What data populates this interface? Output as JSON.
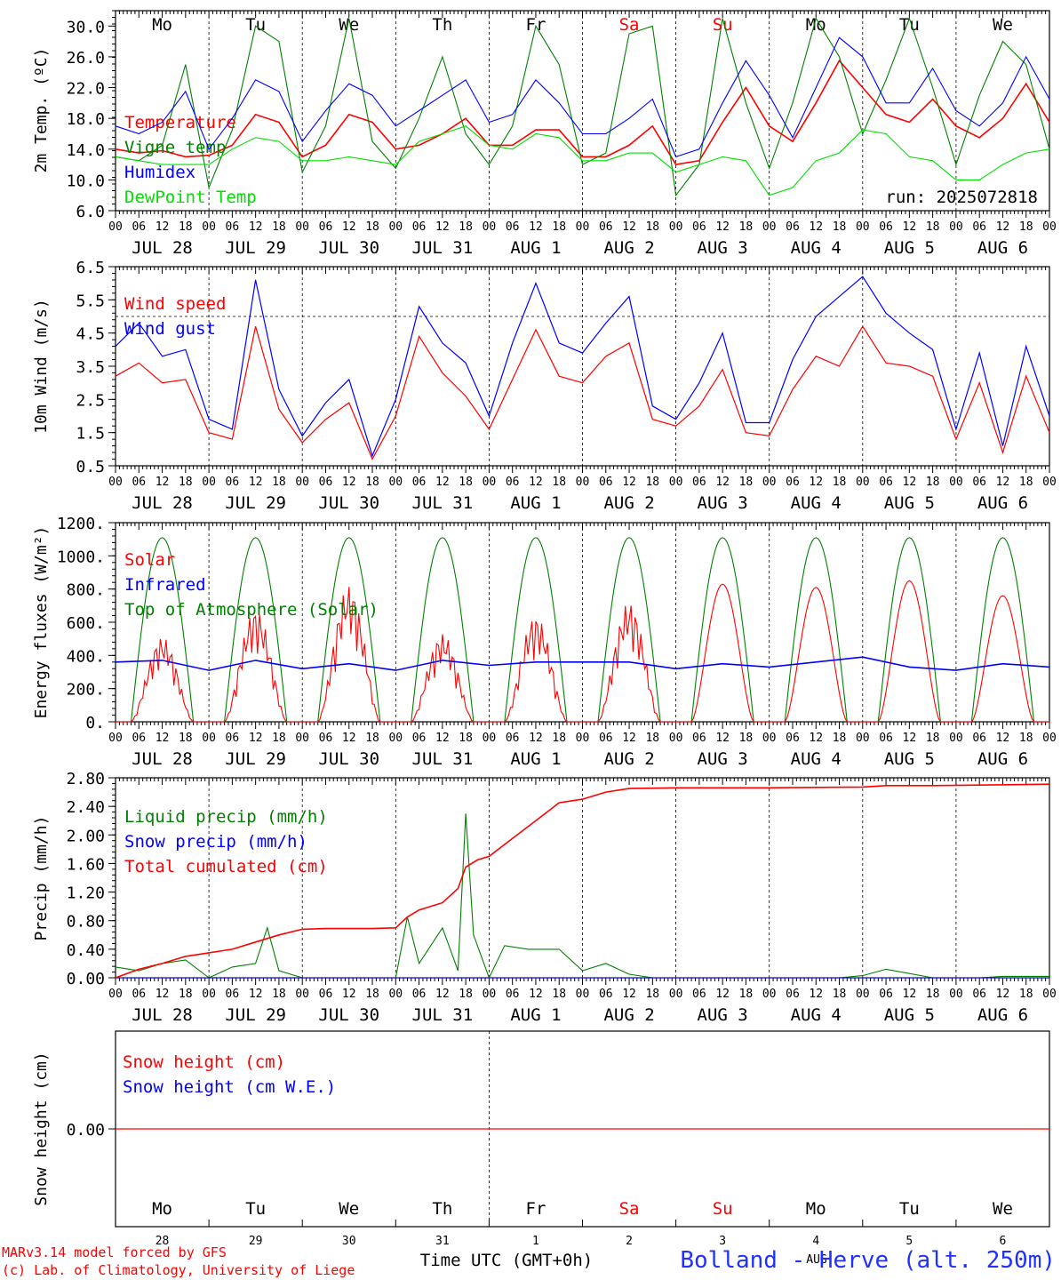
{
  "colors": {
    "red": "#ff0000",
    "green": "#008000",
    "blue": "#0000ff",
    "lime": "#00e000",
    "black": "#000000"
  },
  "days": [
    "28",
    "29",
    "30",
    "31",
    "1",
    "2",
    "3",
    "4",
    "5",
    "6"
  ],
  "date_labels": [
    "JUL 28",
    "JUL 29",
    "JUL 30",
    "JUL 31",
    "AUG  1",
    "AUG  2",
    "AUG  3",
    "AUG  4",
    "AUG  5",
    "AUG  6"
  ],
  "weekdays": [
    "Mo",
    "Tu",
    "We",
    "Th",
    "Fr",
    "Sa",
    "Su",
    "Mo",
    "Tu",
    "We"
  ],
  "weekday_colors": [
    "#000000",
    "#000000",
    "#000000",
    "#000000",
    "#000000",
    "#ff0000",
    "#ff0000",
    "#000000",
    "#000000",
    "#000000"
  ],
  "hour_ticks": [
    "00",
    "06",
    "12",
    "18"
  ],
  "footer": {
    "model": "MARv3.14 model forced by GFS",
    "lab": "(c) Lab. of Climatology, University of Liege",
    "xlabel": "Time UTC (GMT+0h)",
    "month": "AUG",
    "station": "Bolland - Herve (alt. 250m)"
  },
  "chart_data": [
    {
      "type": "line",
      "panel": "temperature",
      "ylabel": "2m Temp. (ºC)",
      "ylim": [
        6,
        32
      ],
      "yticks": [
        "6.0",
        "10.0",
        "14.0",
        "18.0",
        "22.0",
        "26.0",
        "30.0"
      ],
      "annotation": "run: 2025072818",
      "x_unit": "hours from JUL 28 00 UTC",
      "x_range": [
        0,
        240
      ],
      "series": [
        {
          "name": "Temperature",
          "color": "#ff0000",
          "x": [
            0,
            6,
            12,
            18,
            24,
            30,
            36,
            42,
            48,
            54,
            60,
            66,
            72,
            78,
            84,
            90,
            96,
            102,
            108,
            114,
            120,
            126,
            132,
            138,
            144,
            150,
            156,
            162,
            168,
            174,
            180,
            186,
            192,
            198,
            204,
            210,
            216,
            222,
            228,
            234,
            240
          ],
          "values": [
            14,
            13.5,
            13.8,
            13,
            13.2,
            14.5,
            18.5,
            17.5,
            13,
            14.5,
            18.5,
            17.5,
            14,
            14.5,
            16,
            18,
            14.5,
            14.5,
            16.5,
            16.5,
            13,
            13,
            14.5,
            17,
            12,
            12.5,
            17.5,
            22,
            17,
            15,
            20,
            25.5,
            22,
            18.5,
            17.5,
            20.5,
            17,
            15.5,
            18,
            22.5,
            17.5
          ]
        },
        {
          "name": "Vigne temp",
          "color": "#008000",
          "x": [
            0,
            6,
            12,
            18,
            24,
            30,
            36,
            42,
            48,
            54,
            60,
            66,
            72,
            78,
            84,
            90,
            96,
            102,
            108,
            114,
            120,
            126,
            132,
            138,
            144,
            150,
            156,
            162,
            168,
            174,
            180,
            186,
            192,
            198,
            204,
            210,
            216,
            222,
            228,
            234,
            240
          ],
          "values": [
            13,
            12.5,
            14.5,
            25,
            9,
            16.5,
            30,
            28,
            11,
            17,
            31,
            15,
            11.5,
            18,
            26,
            16,
            12,
            17,
            30,
            25,
            12,
            13.5,
            29,
            30,
            8,
            12,
            31,
            20,
            11.5,
            20,
            31,
            26,
            16,
            23,
            31,
            22,
            12,
            21,
            28,
            25,
            14
          ]
        },
        {
          "name": "Humidex",
          "color": "#0000ff",
          "x": [
            0,
            6,
            12,
            18,
            24,
            30,
            36,
            42,
            48,
            54,
            60,
            66,
            72,
            78,
            84,
            90,
            96,
            102,
            108,
            114,
            120,
            126,
            132,
            138,
            144,
            150,
            156,
            162,
            168,
            174,
            180,
            186,
            192,
            198,
            204,
            210,
            216,
            222,
            228,
            234,
            240
          ],
          "values": [
            17,
            16,
            17.5,
            21.5,
            14,
            18,
            23,
            21.5,
            15,
            19,
            22.5,
            21,
            17,
            19,
            21,
            23,
            17.5,
            18.5,
            23,
            20,
            16,
            16,
            18,
            20.5,
            13,
            14,
            20,
            25.5,
            21,
            15.5,
            22,
            28.5,
            26,
            20,
            20,
            24.5,
            19,
            17,
            20,
            26,
            20.5
          ]
        },
        {
          "name": "DewPoint Temp",
          "color": "#00e000",
          "x": [
            0,
            6,
            12,
            18,
            24,
            30,
            36,
            42,
            48,
            54,
            60,
            66,
            72,
            78,
            84,
            90,
            96,
            102,
            108,
            114,
            120,
            126,
            132,
            138,
            144,
            150,
            156,
            162,
            168,
            174,
            180,
            186,
            192,
            198,
            204,
            210,
            216,
            222,
            228,
            234,
            240
          ],
          "values": [
            13,
            12.5,
            12,
            12,
            12,
            14,
            15.5,
            15,
            12.5,
            12.5,
            13,
            12.5,
            12,
            15,
            16,
            17,
            14.5,
            14,
            16,
            15.5,
            12.5,
            12.5,
            13.5,
            13.5,
            11,
            12,
            13,
            12.5,
            8,
            9,
            12.5,
            13.5,
            16.5,
            16,
            13,
            12.5,
            10,
            10,
            12,
            13.5,
            14
          ]
        }
      ]
    },
    {
      "type": "line",
      "panel": "wind",
      "ylabel": "10m Wind (m/s)",
      "ylim": [
        0.5,
        6.5
      ],
      "yticks": [
        "0.5",
        "1.5",
        "2.5",
        "3.5",
        "4.5",
        "5.5",
        "6.5"
      ],
      "reference_line": 5.0,
      "series": [
        {
          "name": "Wind speed",
          "color": "#ff0000",
          "x": [
            0,
            6,
            12,
            18,
            24,
            30,
            36,
            42,
            48,
            54,
            60,
            66,
            72,
            78,
            84,
            90,
            96,
            102,
            108,
            114,
            120,
            126,
            132,
            138,
            144,
            150,
            156,
            162,
            168,
            174,
            180,
            186,
            192,
            198,
            204,
            210,
            216,
            222,
            228,
            234,
            240
          ],
          "values": [
            3.2,
            3.6,
            3.0,
            3.1,
            1.5,
            1.3,
            4.7,
            2.2,
            1.2,
            1.9,
            2.4,
            0.7,
            2.0,
            4.4,
            3.3,
            2.6,
            1.6,
            3.1,
            4.6,
            3.2,
            3.0,
            3.8,
            4.2,
            1.9,
            1.7,
            2.3,
            3.4,
            1.5,
            1.4,
            2.8,
            3.8,
            3.5,
            4.7,
            3.6,
            3.5,
            3.2,
            1.3,
            3.0,
            0.9,
            3.2,
            1.5
          ]
        },
        {
          "name": "Wind gust",
          "color": "#0000ff",
          "x": [
            0,
            6,
            12,
            18,
            24,
            30,
            36,
            42,
            48,
            54,
            60,
            66,
            72,
            78,
            84,
            90,
            96,
            102,
            108,
            114,
            120,
            126,
            132,
            138,
            144,
            150,
            156,
            162,
            168,
            174,
            180,
            186,
            192,
            198,
            204,
            210,
            216,
            222,
            228,
            234,
            240
          ],
          "values": [
            4.1,
            4.8,
            3.8,
            4.0,
            1.9,
            1.6,
            6.1,
            2.8,
            1.4,
            2.4,
            3.1,
            0.8,
            2.5,
            5.3,
            4.2,
            3.6,
            2.0,
            4.2,
            6.0,
            4.2,
            3.9,
            4.8,
            5.6,
            2.3,
            1.9,
            3.0,
            4.5,
            1.8,
            1.8,
            3.7,
            5.0,
            5.6,
            6.2,
            5.1,
            4.5,
            4.0,
            1.6,
            3.9,
            1.1,
            4.1,
            2.0
          ]
        }
      ]
    },
    {
      "type": "line",
      "panel": "energy",
      "ylabel": "Energy fluxes (W/m²)",
      "ylim": [
        0,
        1200
      ],
      "yticks": [
        "0.",
        "200.",
        "400.",
        "600.",
        "800.",
        "1000.",
        "1200."
      ],
      "series": [
        {
          "name": "Solar",
          "color": "#ff0000",
          "peaks": [
            510,
            680,
            820,
            530,
            640,
            720,
            830,
            810,
            850,
            760
          ]
        },
        {
          "name": "Infrared",
          "color": "#0000ff",
          "x": [
            0,
            12,
            24,
            36,
            48,
            60,
            72,
            84,
            96,
            108,
            120,
            132,
            144,
            156,
            168,
            180,
            192,
            204,
            216,
            228,
            240
          ],
          "values": [
            360,
            370,
            310,
            370,
            320,
            350,
            310,
            370,
            340,
            360,
            360,
            360,
            320,
            350,
            330,
            360,
            390,
            330,
            310,
            350,
            330
          ]
        },
        {
          "name": "Top of Atmosphere (Solar)",
          "color": "#008000",
          "peak": 1110,
          "sunrise_h": 4,
          "sunset_h": 20
        }
      ]
    },
    {
      "type": "line",
      "panel": "precip",
      "ylabel": "Precip (mm/h)",
      "ylim": [
        0,
        2.8
      ],
      "yticks": [
        "0.00",
        "0.40",
        "0.80",
        "1.20",
        "1.60",
        "2.00",
        "2.40",
        "2.80"
      ],
      "series": [
        {
          "name": "Liquid precip (mm/h)",
          "color": "#008000",
          "x": [
            0,
            6,
            12,
            18,
            24,
            30,
            36,
            39,
            42,
            48,
            54,
            60,
            66,
            72,
            75,
            78,
            84,
            88,
            90,
            92,
            96,
            100,
            106,
            114,
            120,
            126,
            132,
            138,
            144,
            150,
            162,
            174,
            186,
            192,
            198,
            210,
            222,
            228,
            240
          ],
          "values": [
            0.15,
            0.1,
            0.2,
            0.25,
            0,
            0.15,
            0.2,
            0.7,
            0.1,
            0,
            0,
            0,
            0,
            0,
            0.85,
            0.2,
            0.7,
            0.1,
            2.3,
            0.6,
            0,
            0.45,
            0.4,
            0.4,
            0.1,
            0.2,
            0.05,
            0,
            0,
            0,
            0,
            0,
            0,
            0.03,
            0.12,
            0,
            0,
            0.02,
            0.02
          ]
        },
        {
          "name": "Snow precip (mm/h)",
          "color": "#0000ff",
          "x": [
            0,
            240
          ],
          "values": [
            0,
            0
          ]
        },
        {
          "name": "Total cumulated (cm)",
          "color": "#ff0000",
          "x": [
            0,
            6,
            12,
            18,
            24,
            30,
            36,
            42,
            48,
            54,
            60,
            66,
            72,
            75,
            78,
            84,
            88,
            90,
            93,
            96,
            102,
            108,
            114,
            120,
            126,
            132,
            144,
            168,
            192,
            198,
            210,
            240
          ],
          "values": [
            0,
            0.12,
            0.2,
            0.3,
            0.35,
            0.4,
            0.5,
            0.6,
            0.68,
            0.69,
            0.69,
            0.69,
            0.7,
            0.85,
            0.95,
            1.05,
            1.25,
            1.55,
            1.65,
            1.7,
            1.95,
            2.2,
            2.45,
            2.5,
            2.6,
            2.65,
            2.66,
            2.66,
            2.67,
            2.69,
            2.69,
            2.71
          ]
        }
      ]
    },
    {
      "type": "line",
      "panel": "snow",
      "ylabel": "Snow height (cm)",
      "yticks": [
        "0.00"
      ],
      "series": [
        {
          "name": "Snow height (cm)",
          "color": "#ff0000",
          "x": [
            0,
            240
          ],
          "values": [
            0,
            0
          ]
        },
        {
          "name": "Snow height (cm W.E.)",
          "color": "#0000ff",
          "x": [
            0,
            240
          ],
          "values": [
            0,
            0
          ]
        }
      ]
    }
  ]
}
